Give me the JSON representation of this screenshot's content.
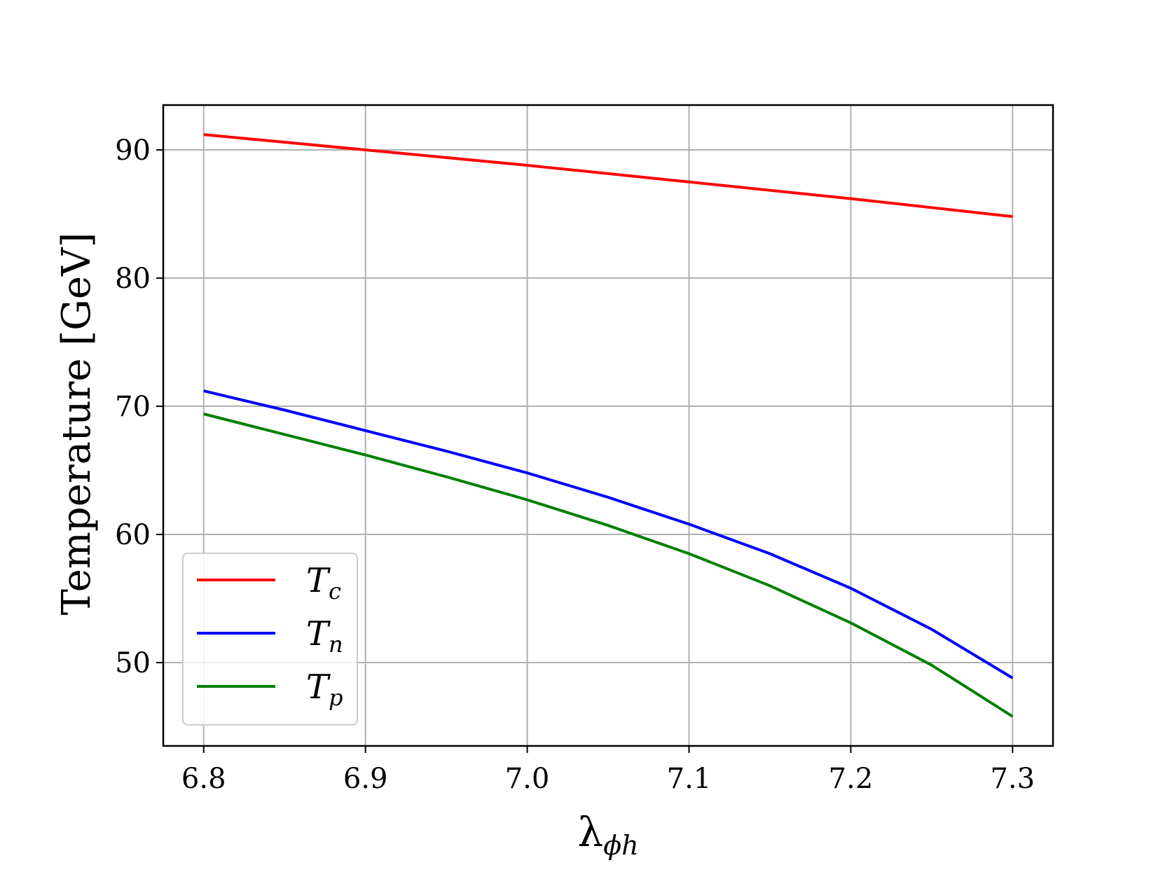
{
  "chart_data": {
    "type": "line",
    "xlabel": "λ",
    "xlabel_sub": "ϕh",
    "ylabel": "Temperature [GeV]",
    "xlim": [
      6.775,
      7.325
    ],
    "ylim": [
      43.5,
      93.5
    ],
    "xticks": [
      6.8,
      6.9,
      7.0,
      7.1,
      7.2,
      7.3
    ],
    "xtick_labels": [
      "6.8",
      "6.9",
      "7.0",
      "7.1",
      "7.2",
      "7.3"
    ],
    "yticks": [
      50,
      60,
      70,
      80,
      90
    ],
    "ytick_labels": [
      "50",
      "60",
      "70",
      "80",
      "90"
    ],
    "grid": true,
    "legend_position": "lower-left",
    "series": [
      {
        "name": "T",
        "sub": "c",
        "color": "#ff0000",
        "x": [
          6.8,
          6.9,
          7.0,
          7.1,
          7.2,
          7.3
        ],
        "y": [
          91.2,
          90.0,
          88.8,
          87.5,
          86.2,
          84.8
        ]
      },
      {
        "name": "T",
        "sub": "n",
        "color": "#0000ff",
        "x": [
          6.8,
          6.85,
          6.9,
          6.95,
          7.0,
          7.05,
          7.1,
          7.15,
          7.2,
          7.25,
          7.3
        ],
        "y": [
          71.2,
          69.7,
          68.1,
          66.5,
          64.8,
          62.9,
          60.8,
          58.5,
          55.8,
          52.6,
          48.8
        ]
      },
      {
        "name": "T",
        "sub": "p",
        "color": "#008000",
        "x": [
          6.8,
          6.85,
          6.9,
          6.95,
          7.0,
          7.05,
          7.1,
          7.15,
          7.2,
          7.25,
          7.3
        ],
        "y": [
          69.4,
          67.8,
          66.2,
          64.5,
          62.7,
          60.7,
          58.5,
          56.0,
          53.1,
          49.8,
          45.8
        ]
      }
    ]
  }
}
